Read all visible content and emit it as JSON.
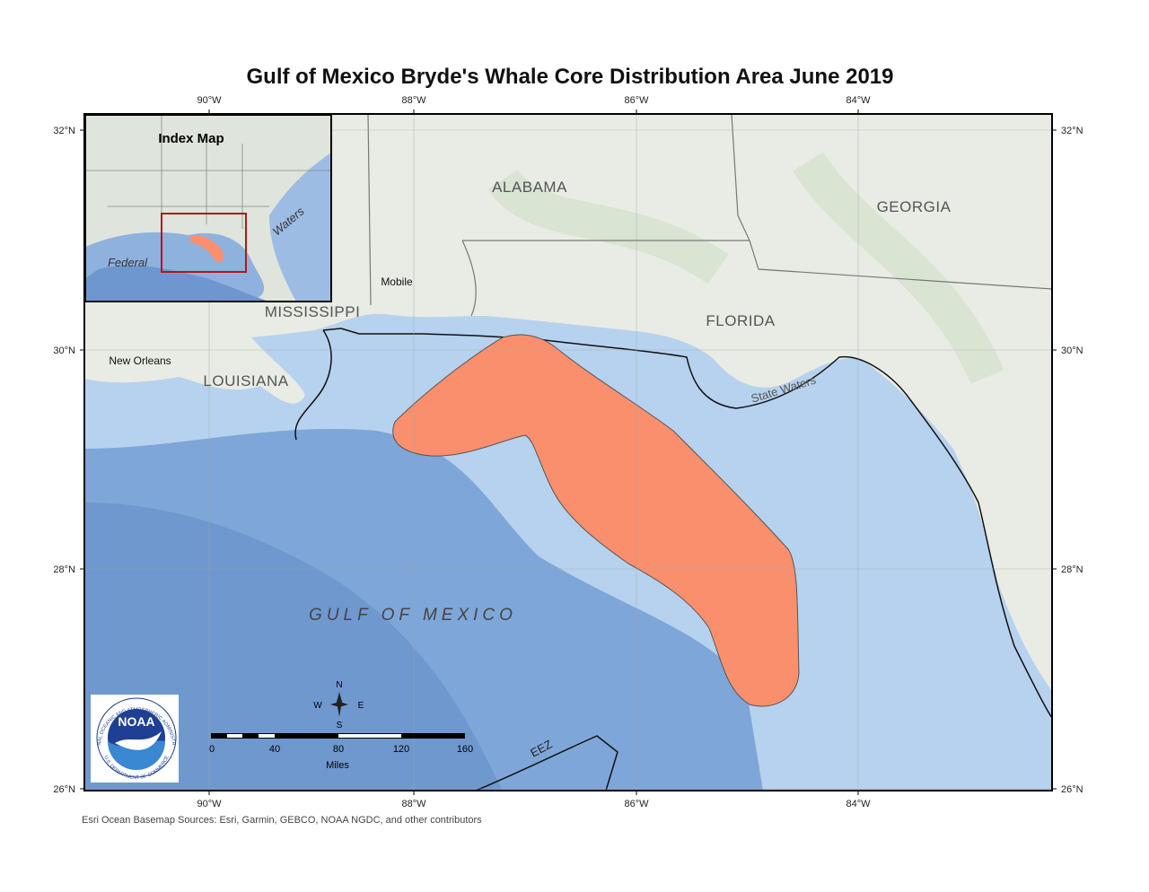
{
  "title": "Gulf of Mexico Bryde's Whale Core Distribution Area June 2019",
  "graticule": {
    "longitudes": [
      "90°W",
      "88°W",
      "86°W",
      "84°W"
    ],
    "latitudes": [
      "32°N",
      "30°N",
      "28°N",
      "26°N"
    ]
  },
  "labels": {
    "states": [
      "ALABAMA",
      "GEORGIA",
      "MISSISSIPPI",
      "FLORIDA",
      "LOUISIANA"
    ],
    "cities": [
      "Mobile",
      "New Orleans"
    ],
    "water": [
      "State Waters",
      "GULF OF MEXICO",
      "EEZ"
    ]
  },
  "index_map": {
    "title": "Index Map",
    "labels": [
      "Federal",
      "Waters"
    ]
  },
  "scale_bar": {
    "ticks": [
      0,
      40,
      80,
      120,
      160
    ],
    "unit": "Miles"
  },
  "compass": {
    "north": "N",
    "west": "W",
    "east": "E",
    "south": "S"
  },
  "logo": {
    "name": "NOAA",
    "top": "NATIONAL OCEANIC AND ATMOSPHERIC ADMINISTRATION",
    "bottom": "U.S. DEPARTMENT OF COMMERCE"
  },
  "credits": "Esri Ocean Basemap Sources: Esri, Garmin, GEBCO, NOAA NGDC, and other contributors"
}
